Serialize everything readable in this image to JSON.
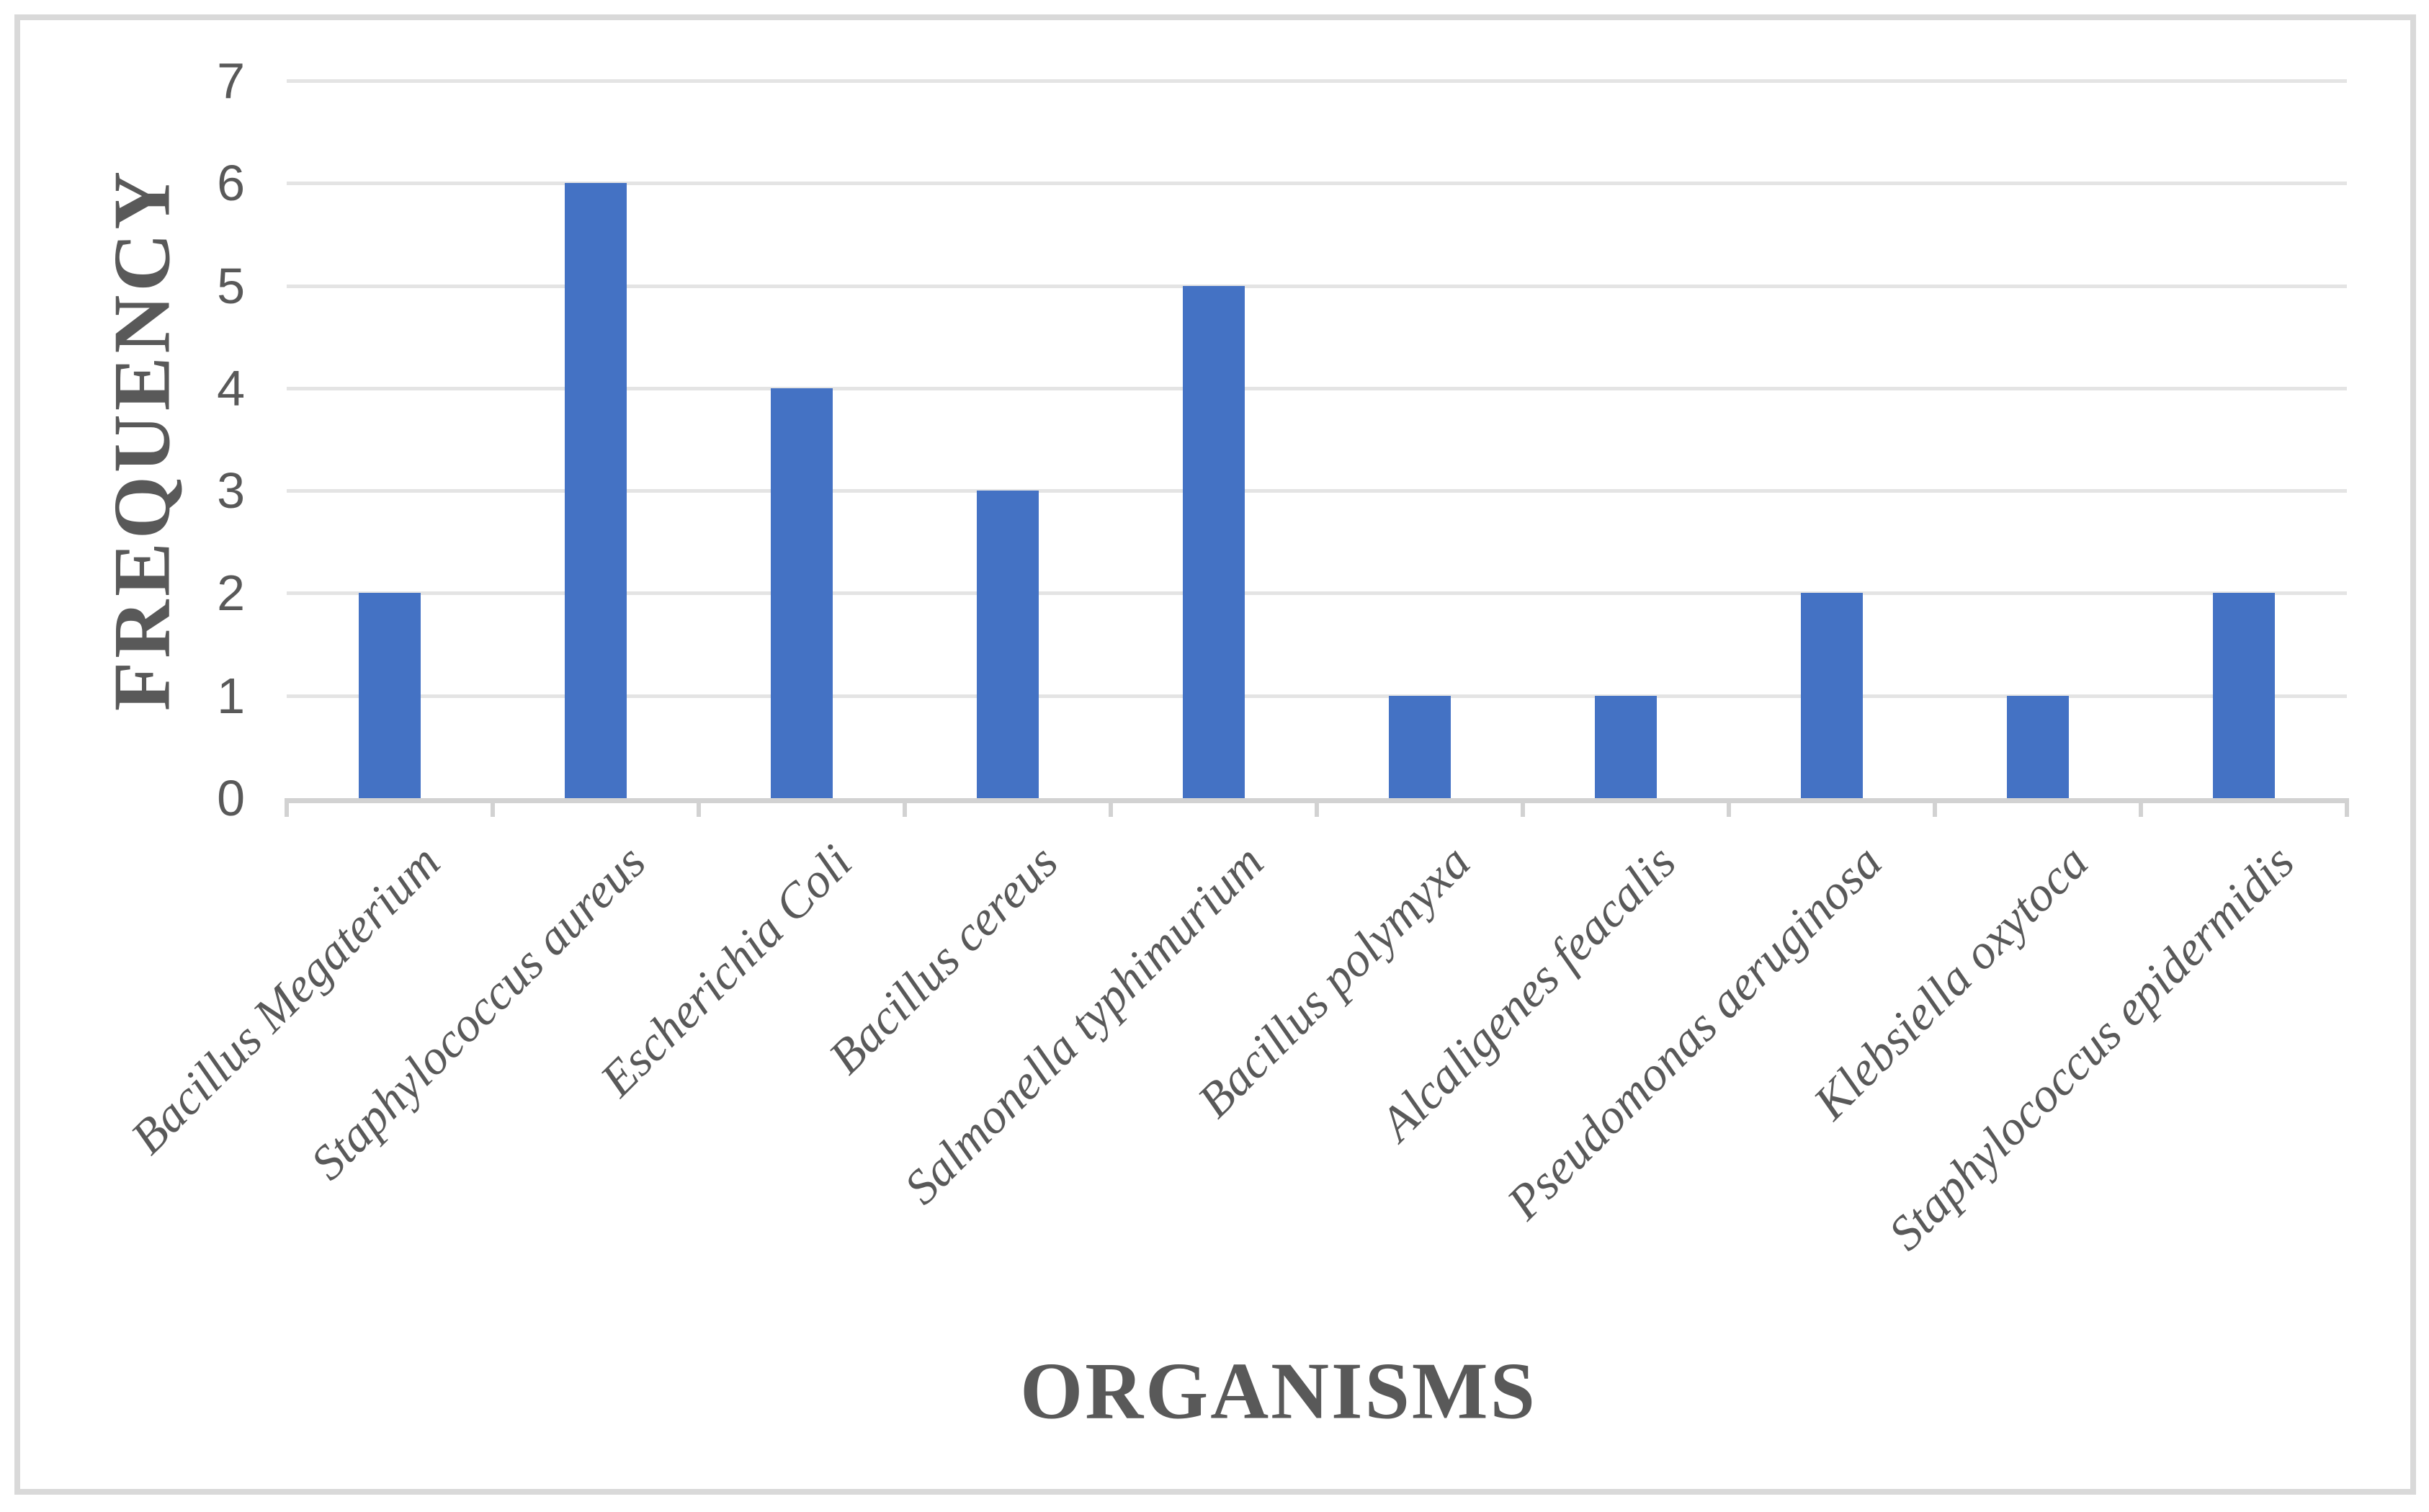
{
  "chart_data": {
    "type": "bar",
    "title": "",
    "categories": [
      "Bacillus Megaterium",
      "Staphylococcus aureus",
      "Escherichia Coli",
      "Bacillus cereus",
      "Salmonella typhimurium",
      "Bacillus polymyxa",
      "Alcaligenes feacalis",
      "Pseudomonas aeruginosa",
      "Klebsiella oxytoca",
      "Staphylococcus epidermidis"
    ],
    "values": [
      2,
      6,
      4,
      3,
      5,
      1,
      1,
      2,
      1,
      2
    ],
    "xlabel": "ORGANISMS",
    "ylabel": "FREQUENCY",
    "ylim": [
      0,
      7
    ],
    "yticks": [
      0,
      1,
      2,
      3,
      4,
      5,
      6,
      7
    ],
    "grid": true,
    "legend_position": "none",
    "category_label_rotation_deg": -45,
    "colors": {
      "bar": "#4472C4",
      "gridline": "#E4E4E4",
      "axis_line": "#D2D2D2",
      "text": "#595959",
      "frame_border": "#D9D9D9",
      "background": "#FFFFFF"
    }
  }
}
